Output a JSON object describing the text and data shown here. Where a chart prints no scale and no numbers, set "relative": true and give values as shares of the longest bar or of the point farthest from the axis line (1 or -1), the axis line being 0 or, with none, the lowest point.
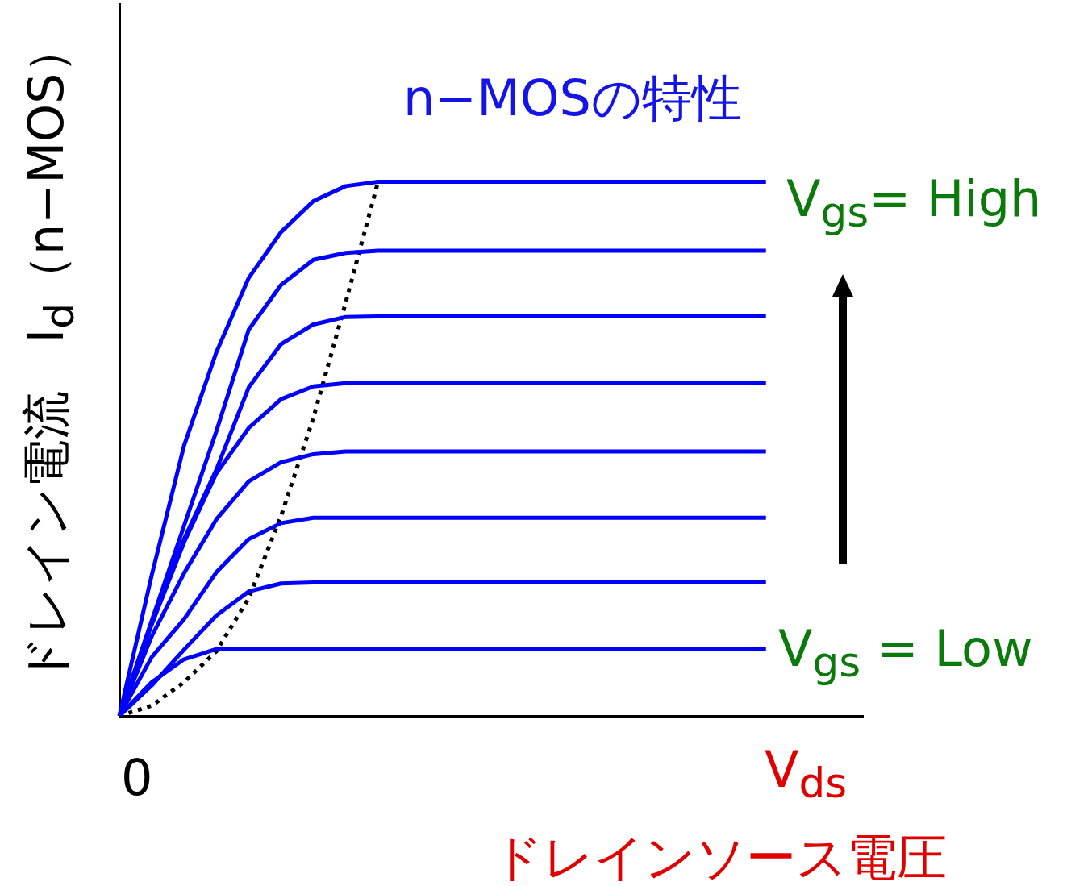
{
  "chart_data": {
    "type": "line",
    "relative": true,
    "title": "n−MOSの特性",
    "ylabel": "ドレイン電流　I$_{d}$（n−MOS）",
    "xlabel": "V$_{ds}$\nドレインソース電圧",
    "annotations": [
      "0",
      "V$_{gs}$= High",
      "V$_{gs}$ = Low"
    ],
    "categories": [
      null,
      null,
      null,
      null,
      null,
      null,
      null,
      null,
      null,
      null,
      null,
      null,
      null,
      null,
      null,
      null,
      null,
      null,
      null,
      null,
      null,
      null,
      null,
      null
    ],
    "grid": false,
    "legend": false,
    "marker": "none",
    "series": [
      {
        "color": "#0000ff",
        "values": [
          0,
          0.263,
          0.506,
          0.681,
          0.82,
          0.906,
          0.964,
          0.992,
          1,
          1,
          1,
          1,
          1,
          1,
          1,
          1,
          1,
          1,
          1,
          1,
          1,
          null,
          null,
          null
        ]
      },
      {
        "color": "#0000ff",
        "values": [
          0,
          0.178,
          0.356,
          0.533,
          0.723,
          0.807,
          0.854,
          0.867,
          0.871,
          0.871,
          0.871,
          0.871,
          0.871,
          0.871,
          0.871,
          0.871,
          0.871,
          0.871,
          0.871,
          0.871,
          0.871,
          null,
          null,
          null
        ]
      },
      {
        "color": "#0000ff",
        "values": [
          0,
          0.176,
          0.331,
          0.461,
          0.615,
          0.696,
          0.733,
          0.747,
          0.748,
          0.748,
          0.748,
          0.748,
          0.748,
          0.748,
          0.748,
          0.748,
          0.748,
          0.748,
          0.748,
          0.748,
          0.748,
          null,
          null,
          null
        ]
      },
      {
        "color": "#0000ff",
        "values": [
          0,
          0.171,
          0.325,
          0.454,
          0.539,
          0.593,
          0.617,
          0.623,
          0.623,
          0.623,
          0.623,
          0.623,
          0.623,
          0.623,
          0.623,
          0.623,
          0.623,
          0.623,
          0.623,
          0.623,
          0.623,
          null,
          null,
          null
        ]
      },
      {
        "color": "#0000ff",
        "values": [
          0,
          0.149,
          0.267,
          0.368,
          0.439,
          0.475,
          0.49,
          0.495,
          0.495,
          0.495,
          0.495,
          0.495,
          0.495,
          0.495,
          0.495,
          0.495,
          0.495,
          0.495,
          0.495,
          0.495,
          0.495,
          null,
          null,
          null
        ]
      },
      {
        "color": "#0000ff",
        "values": [
          0,
          0.11,
          0.181,
          0.269,
          0.331,
          0.361,
          0.371,
          0.371,
          0.371,
          0.371,
          0.371,
          0.371,
          0.371,
          0.371,
          0.371,
          0.371,
          0.371,
          0.371,
          0.371,
          0.371,
          0.371,
          null,
          null,
          null
        ]
      },
      {
        "color": "#0000ff",
        "values": [
          0,
          0.057,
          0.124,
          0.188,
          0.233,
          0.248,
          0.25,
          0.25,
          0.25,
          0.25,
          0.25,
          0.25,
          0.25,
          0.25,
          0.25,
          0.25,
          0.25,
          0.25,
          0.25,
          0.25,
          0.25,
          null,
          null,
          null
        ]
      },
      {
        "color": "#0000ff",
        "values": [
          0,
          0.063,
          0.106,
          0.125,
          0.125,
          0.125,
          0.125,
          0.125,
          0.125,
          0.125,
          0.125,
          0.125,
          0.125,
          0.125,
          0.125,
          0.125,
          0.125,
          0.125,
          0.125,
          0.125,
          0.125,
          null,
          null,
          null
        ]
      },
      {
        "color": "#000000",
        "line_style": "dotted",
        "values": [
          0,
          0.019,
          0.063,
          0.121,
          0.22,
          0.374,
          0.558,
          0.774,
          1,
          null,
          null,
          null,
          null,
          null,
          null,
          null,
          null,
          null,
          null,
          null,
          null,
          null,
          null,
          null
        ]
      }
    ]
  }
}
